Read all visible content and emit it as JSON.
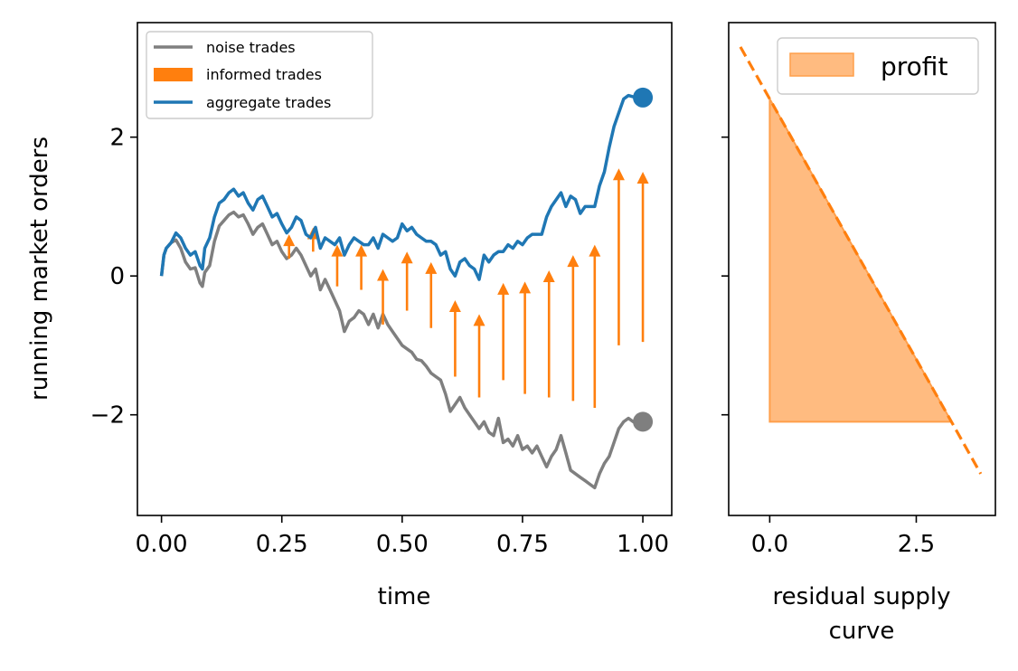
{
  "colors": {
    "noise": "#7f7f7f",
    "informed": "#ff7f0e",
    "aggregate": "#1f77b4",
    "profit_fill": "#ffbb80",
    "profit_edge": "#ff9f4a"
  },
  "chart_data": [
    {
      "type": "line",
      "xlabel": "time",
      "ylabel": "running market orders",
      "xlim": [
        -0.05,
        1.06
      ],
      "ylim": [
        -3.45,
        3.65
      ],
      "xticks": [
        0.0,
        0.25,
        0.5,
        0.75,
        1.0
      ],
      "xtick_labels": [
        "0.00",
        "0.25",
        "0.50",
        "0.75",
        "1.00"
      ],
      "yticks": [
        -2,
        0,
        2
      ],
      "ytick_labels": [
        "−2",
        "0",
        "2"
      ],
      "legend_position": "top-left",
      "series": [
        {
          "name": "noise trades",
          "color_key": "noise",
          "x": [
            0.0,
            0.005,
            0.01,
            0.02,
            0.03,
            0.04,
            0.05,
            0.06,
            0.07,
            0.08,
            0.085,
            0.09,
            0.1,
            0.11,
            0.12,
            0.13,
            0.14,
            0.15,
            0.16,
            0.17,
            0.18,
            0.19,
            0.2,
            0.21,
            0.22,
            0.23,
            0.24,
            0.25,
            0.26,
            0.27,
            0.28,
            0.29,
            0.3,
            0.31,
            0.32,
            0.33,
            0.34,
            0.35,
            0.36,
            0.37,
            0.38,
            0.39,
            0.4,
            0.41,
            0.42,
            0.43,
            0.44,
            0.45,
            0.46,
            0.47,
            0.48,
            0.49,
            0.5,
            0.51,
            0.52,
            0.53,
            0.54,
            0.55,
            0.56,
            0.57,
            0.58,
            0.59,
            0.6,
            0.61,
            0.62,
            0.63,
            0.64,
            0.65,
            0.66,
            0.67,
            0.68,
            0.69,
            0.7,
            0.71,
            0.72,
            0.73,
            0.74,
            0.75,
            0.76,
            0.77,
            0.78,
            0.79,
            0.8,
            0.81,
            0.82,
            0.83,
            0.84,
            0.85,
            0.86,
            0.87,
            0.88,
            0.89,
            0.9,
            0.91,
            0.92,
            0.93,
            0.94,
            0.95,
            0.96,
            0.97,
            0.98,
            1.0
          ],
          "values": [
            0.0,
            0.3,
            0.4,
            0.48,
            0.52,
            0.4,
            0.2,
            0.1,
            0.12,
            -0.1,
            -0.15,
            0.05,
            0.15,
            0.5,
            0.72,
            0.8,
            0.88,
            0.92,
            0.85,
            0.88,
            0.75,
            0.6,
            0.7,
            0.75,
            0.6,
            0.45,
            0.5,
            0.35,
            0.25,
            0.3,
            0.4,
            0.3,
            0.15,
            0.0,
            0.1,
            -0.2,
            -0.05,
            -0.2,
            -0.35,
            -0.5,
            -0.8,
            -0.65,
            -0.6,
            -0.5,
            -0.55,
            -0.7,
            -0.55,
            -0.75,
            -0.55,
            -0.7,
            -0.8,
            -0.9,
            -1.0,
            -1.05,
            -1.1,
            -1.2,
            -1.22,
            -1.3,
            -1.4,
            -1.45,
            -1.5,
            -1.7,
            -1.95,
            -1.85,
            -1.75,
            -1.9,
            -2.0,
            -2.1,
            -2.2,
            -2.1,
            -2.25,
            -2.3,
            -2.05,
            -2.4,
            -2.35,
            -2.45,
            -2.3,
            -2.5,
            -2.45,
            -2.55,
            -2.45,
            -2.6,
            -2.75,
            -2.6,
            -2.5,
            -2.3,
            -2.55,
            -2.8,
            -2.85,
            -2.9,
            -2.95,
            -3.0,
            -3.05,
            -2.85,
            -2.7,
            -2.6,
            -2.4,
            -2.2,
            -2.1,
            -2.05,
            -2.1,
            -2.1
          ]
        },
        {
          "name": "informed trades",
          "color_key": "informed",
          "style": "arrows",
          "arrows": [
            {
              "x": 0.265,
              "y0": 0.25,
              "y1": 0.6
            },
            {
              "x": 0.315,
              "y0": 0.35,
              "y1": 0.7
            },
            {
              "x": 0.365,
              "y0": -0.15,
              "y1": 0.45
            },
            {
              "x": 0.415,
              "y0": -0.2,
              "y1": 0.45
            },
            {
              "x": 0.46,
              "y0": -0.7,
              "y1": 0.1
            },
            {
              "x": 0.51,
              "y0": -0.5,
              "y1": 0.35
            },
            {
              "x": 0.56,
              "y0": -0.75,
              "y1": 0.2
            },
            {
              "x": 0.61,
              "y0": -1.45,
              "y1": -0.35
            },
            {
              "x": 0.66,
              "y0": -1.75,
              "y1": -0.55
            },
            {
              "x": 0.71,
              "y0": -1.5,
              "y1": -0.1
            },
            {
              "x": 0.755,
              "y0": -1.7,
              "y1": -0.08
            },
            {
              "x": 0.805,
              "y0": -1.75,
              "y1": 0.08
            },
            {
              "x": 0.855,
              "y0": -1.8,
              "y1": 0.3
            },
            {
              "x": 0.9,
              "y0": -1.9,
              "y1": 0.45
            },
            {
              "x": 0.95,
              "y0": -1.0,
              "y1": 1.55
            },
            {
              "x": 1.0,
              "y0": -0.95,
              "y1": 1.5
            }
          ]
        },
        {
          "name": "aggregate trades",
          "color_key": "aggregate",
          "x": [
            0.0,
            0.005,
            0.01,
            0.02,
            0.03,
            0.04,
            0.05,
            0.06,
            0.07,
            0.08,
            0.085,
            0.09,
            0.1,
            0.11,
            0.12,
            0.13,
            0.14,
            0.15,
            0.16,
            0.17,
            0.18,
            0.19,
            0.2,
            0.21,
            0.22,
            0.23,
            0.24,
            0.25,
            0.26,
            0.27,
            0.28,
            0.29,
            0.3,
            0.31,
            0.32,
            0.33,
            0.34,
            0.35,
            0.36,
            0.37,
            0.38,
            0.39,
            0.4,
            0.41,
            0.42,
            0.43,
            0.44,
            0.45,
            0.46,
            0.47,
            0.48,
            0.49,
            0.5,
            0.51,
            0.52,
            0.53,
            0.54,
            0.55,
            0.56,
            0.57,
            0.58,
            0.59,
            0.6,
            0.61,
            0.62,
            0.63,
            0.64,
            0.65,
            0.66,
            0.67,
            0.68,
            0.69,
            0.7,
            0.71,
            0.72,
            0.73,
            0.74,
            0.75,
            0.76,
            0.77,
            0.78,
            0.79,
            0.8,
            0.81,
            0.82,
            0.83,
            0.84,
            0.85,
            0.86,
            0.87,
            0.88,
            0.89,
            0.9,
            0.91,
            0.92,
            0.93,
            0.94,
            0.95,
            0.96,
            0.97,
            0.98,
            1.0
          ],
          "values": [
            0.0,
            0.3,
            0.4,
            0.48,
            0.62,
            0.55,
            0.4,
            0.3,
            0.35,
            0.15,
            0.1,
            0.4,
            0.55,
            0.85,
            1.05,
            1.1,
            1.2,
            1.25,
            1.15,
            1.2,
            1.05,
            0.95,
            1.1,
            1.15,
            1.0,
            0.85,
            0.9,
            0.75,
            0.62,
            0.7,
            0.85,
            0.8,
            0.6,
            0.55,
            0.7,
            0.4,
            0.55,
            0.5,
            0.45,
            0.55,
            0.3,
            0.45,
            0.55,
            0.5,
            0.45,
            0.45,
            0.55,
            0.4,
            0.6,
            0.55,
            0.5,
            0.55,
            0.75,
            0.65,
            0.7,
            0.6,
            0.55,
            0.5,
            0.5,
            0.45,
            0.3,
            0.35,
            0.1,
            0.0,
            0.2,
            0.25,
            0.15,
            0.1,
            -0.05,
            0.3,
            0.2,
            0.3,
            0.35,
            0.35,
            0.45,
            0.4,
            0.5,
            0.45,
            0.55,
            0.6,
            0.6,
            0.6,
            0.85,
            1.0,
            1.1,
            1.2,
            1.0,
            1.15,
            1.1,
            0.9,
            1.0,
            1.0,
            1.0,
            1.3,
            1.5,
            1.85,
            2.15,
            2.35,
            2.55,
            2.6,
            2.58,
            2.55
          ]
        }
      ],
      "end_points": [
        {
          "series": "aggregate trades",
          "x": 1.0,
          "y": 2.57
        },
        {
          "series": "noise trades",
          "x": 1.0,
          "y": -2.1
        }
      ]
    },
    {
      "type": "area",
      "xlabel": "residual supply curve",
      "xlabel_lines": [
        "residual supply",
        "curve"
      ],
      "xlim": [
        -0.7,
        3.85
      ],
      "ylim": [
        -3.45,
        3.65
      ],
      "xticks": [
        0.0,
        2.5
      ],
      "xtick_labels": [
        "0.0",
        "2.5"
      ],
      "yticks": [
        -2,
        0,
        2
      ],
      "legend_position": "top-right",
      "supply_line": {
        "x": [
          -0.5,
          3.6
        ],
        "y": [
          3.3,
          -2.85
        ],
        "style": "dashed",
        "color_key": "informed"
      },
      "profit_polygon": {
        "name": "profit",
        "x": [
          0.0,
          0.0,
          3.1
        ],
        "y": [
          -2.1,
          2.55,
          -2.1
        ]
      }
    }
  ]
}
